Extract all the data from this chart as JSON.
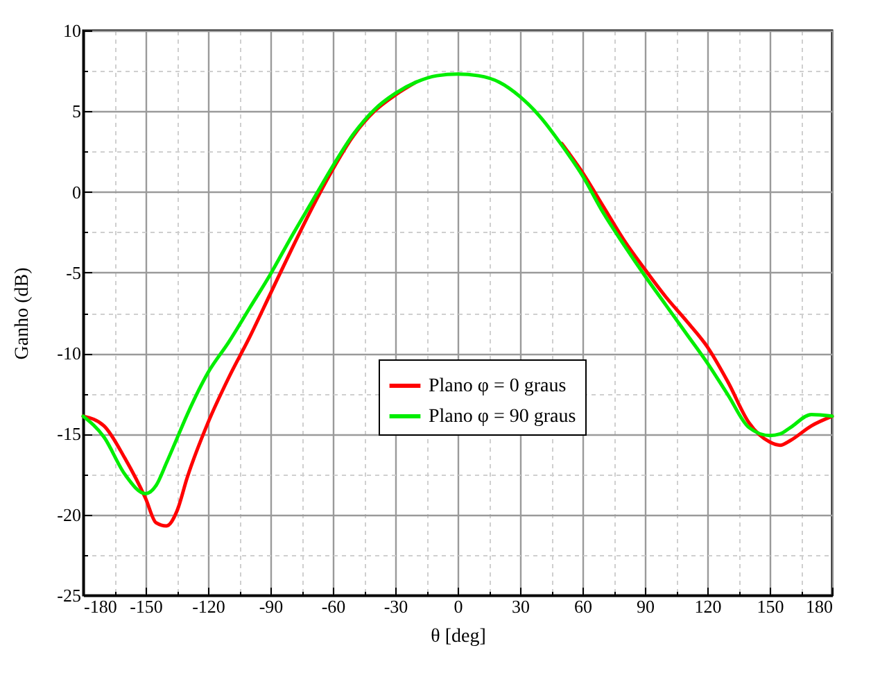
{
  "chart_data": {
    "type": "line",
    "xlabel": "θ [deg]",
    "ylabel": "Ganho (dB)",
    "x": [
      -180,
      -170,
      -160,
      -150,
      -145,
      -140,
      -135,
      -130,
      -120,
      -110,
      -100,
      -90,
      -80,
      -70,
      -60,
      -50,
      -40,
      -30,
      -20,
      -10,
      0,
      10,
      20,
      30,
      40,
      50,
      60,
      70,
      80,
      90,
      100,
      110,
      120,
      130,
      140,
      150,
      155,
      160,
      170,
      180
    ],
    "series": [
      {
        "name": "Plano φ = 0 graus",
        "color": "#ff0000",
        "values": [
          -13.9,
          -14.5,
          -16.5,
          -19,
          -20.5,
          -20.7,
          -19.8,
          -17.7,
          -14.3,
          -11.5,
          -9,
          -6.3,
          -3.6,
          -1.0,
          1.4,
          3.5,
          5.0,
          6.0,
          6.8,
          null,
          null,
          null,
          null,
          null,
          null,
          3.0,
          1.2,
          -0.9,
          -3.0,
          -4.8,
          -6.5,
          -8.0,
          -9.6,
          -11.8,
          -14.3,
          -15.5,
          -15.7,
          -15.4,
          -14.5,
          -13.9
        ]
      },
      {
        "name": "Plano φ = 90 graus",
        "color": "#00ee00",
        "values": [
          -13.9,
          -15.2,
          -17.5,
          -18.7,
          -18.2,
          -16.8,
          -15.3,
          -13.8,
          -11.2,
          -9.3,
          -7.2,
          -5.1,
          -2.8,
          -0.6,
          1.6,
          3.6,
          5.1,
          6.1,
          6.8,
          7.2,
          7.3,
          7.2,
          6.8,
          5.9,
          4.6,
          2.9,
          1.0,
          -1.3,
          -3.3,
          -5.2,
          -7.0,
          -8.8,
          -10.6,
          -12.6,
          -14.6,
          -15.1,
          -15.0,
          -14.6,
          -13.8,
          -13.9
        ]
      }
    ],
    "xlim": [
      -180,
      180
    ],
    "xticks": [
      -180,
      {
        "value": -165,
        "label": null
      },
      -150,
      {
        "value": -135,
        "label": null
      },
      -120,
      {
        "value": -105,
        "label": null
      },
      -90,
      {
        "value": -75,
        "label": null
      },
      -60,
      {
        "value": -45,
        "label": null
      },
      -30,
      {
        "value": -15,
        "label": null
      },
      0,
      {
        "value": 15,
        "label": null
      },
      30,
      {
        "value": 45,
        "label": null
      },
      60,
      {
        "value": 75,
        "label": null
      },
      90,
      {
        "value": 105,
        "label": null
      },
      120,
      {
        "value": 135,
        "label": null
      },
      150,
      {
        "value": 165,
        "label": null
      },
      180
    ],
    "ylim": [
      -25,
      10
    ],
    "yticks": [
      -25,
      {
        "value": -22.5,
        "label": null
      },
      -20,
      {
        "value": -17.5,
        "label": null
      },
      -15,
      {
        "value": -12.5,
        "label": null
      },
      -10,
      {
        "value": -7.5,
        "label": null
      },
      -5,
      {
        "value": -2.5,
        "label": null
      },
      0,
      {
        "value": 2.5,
        "label": null
      },
      5,
      {
        "value": 7.5,
        "label": null
      },
      10
    ],
    "grid": true,
    "legend": "center",
    "marker": "none",
    "line_style": "solid"
  }
}
